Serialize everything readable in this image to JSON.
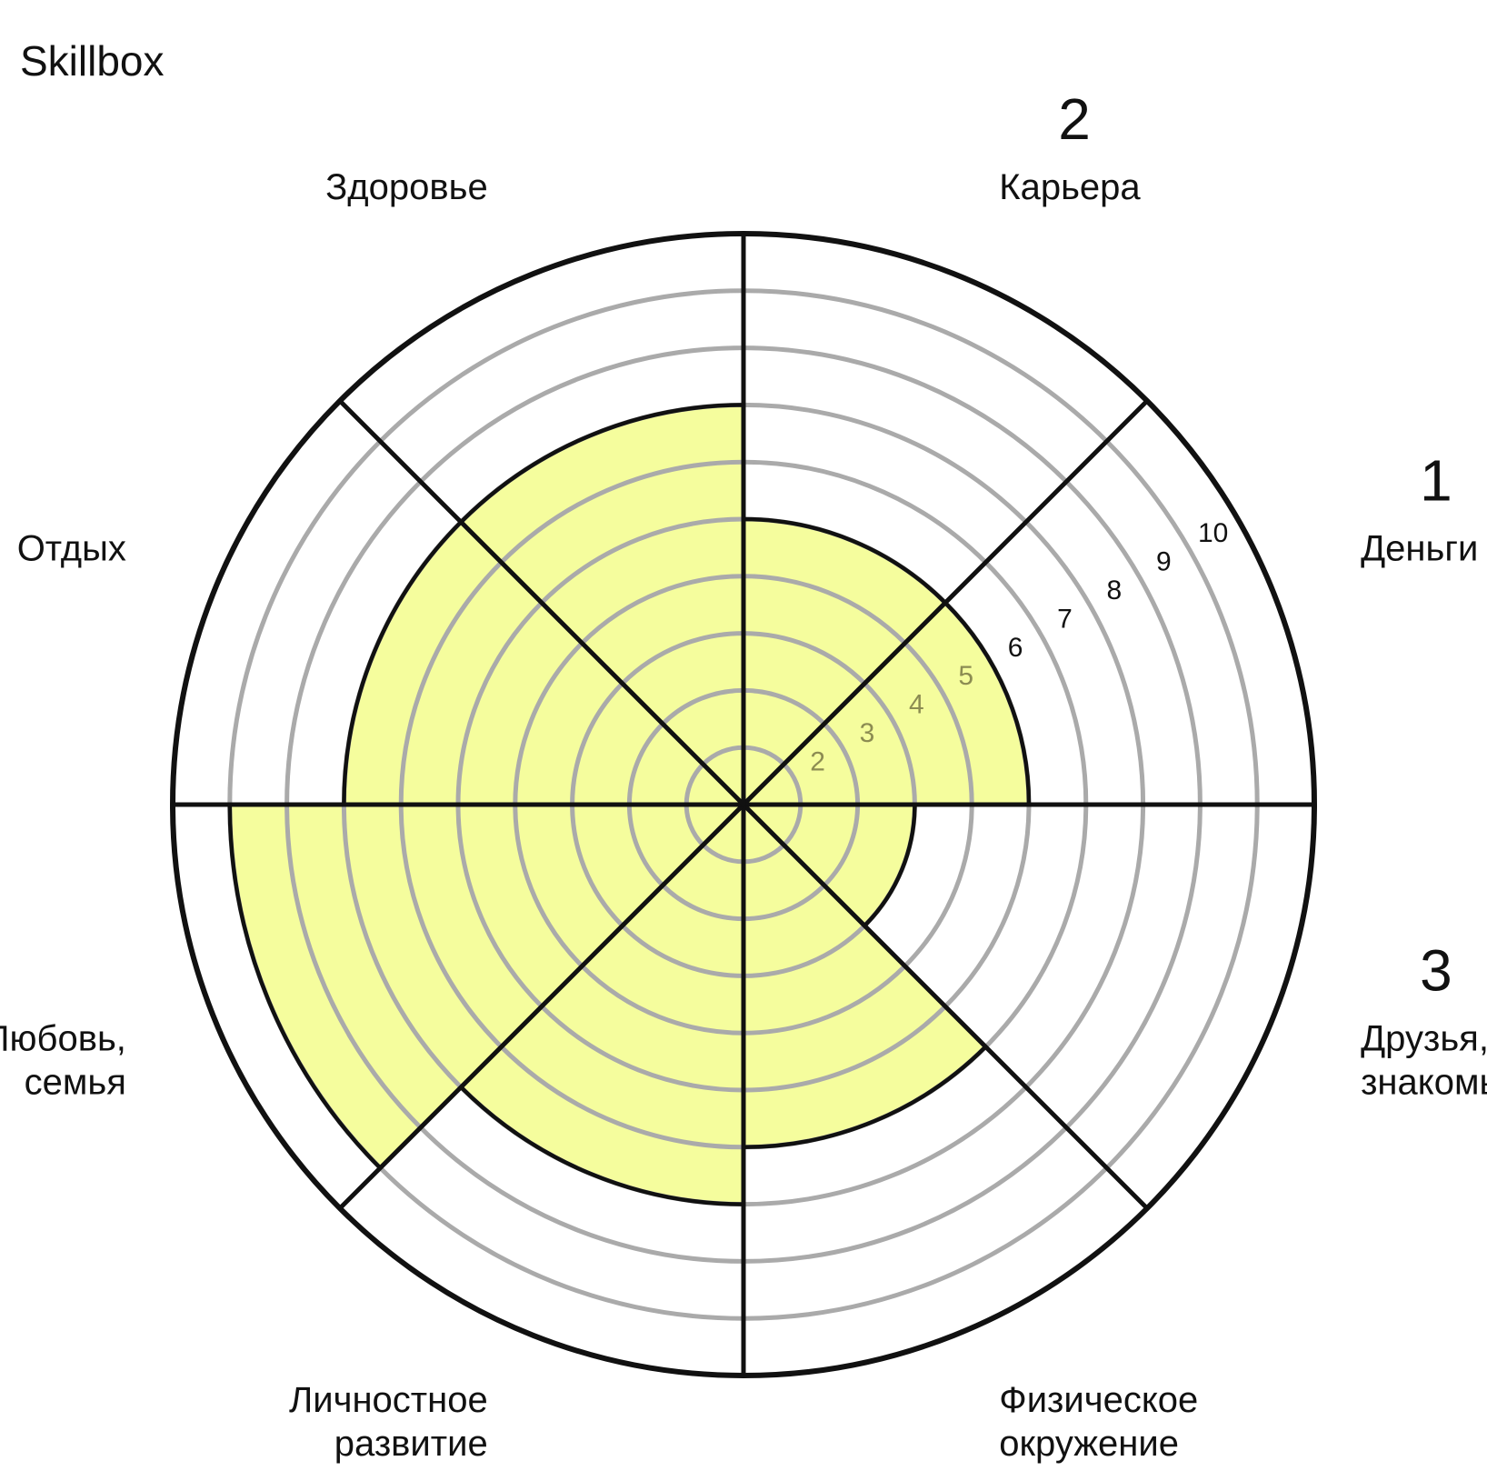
{
  "brand": "Skillbox",
  "colors": {
    "fill": "#f4fd90",
    "fill_stroke": "#111111",
    "grid": "#aaaaaa",
    "axis": "#111111",
    "tick_on_fill": "#8c8c52",
    "tick_plain": "#111111"
  },
  "chart_data": {
    "type": "polar-area",
    "scale_max": 10,
    "rings": [
      1,
      2,
      3,
      4,
      5,
      6,
      7,
      8,
      9,
      10
    ],
    "tick_labels": [
      "2",
      "3",
      "4",
      "5",
      "6",
      "7",
      "8",
      "9",
      "10"
    ],
    "sectors": [
      {
        "label": [
          "Карьера"
        ],
        "value": 5,
        "marker": "2"
      },
      {
        "label": [
          "Деньги"
        ],
        "value": 5,
        "marker": "1"
      },
      {
        "label": [
          "Друзья,",
          "знакомые"
        ],
        "value": 3,
        "marker": "3"
      },
      {
        "label": [
          "Физическое",
          "окружение"
        ],
        "value": 6,
        "marker": ""
      },
      {
        "label": [
          "Личностное",
          "развитие"
        ],
        "value": 7,
        "marker": ""
      },
      {
        "label": [
          "Любовь,",
          "семья"
        ],
        "value": 9,
        "marker": ""
      },
      {
        "label": [
          "Отдых"
        ],
        "value": 7,
        "marker": ""
      },
      {
        "label": [
          "Здоровье"
        ],
        "value": 7,
        "marker": ""
      }
    ]
  }
}
